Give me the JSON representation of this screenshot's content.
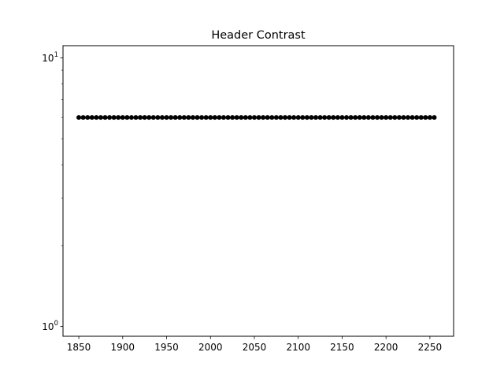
{
  "chart_data": {
    "type": "scatter",
    "title": "Header Contrast",
    "xlabel": "",
    "ylabel": "",
    "xlim": [
      1832,
      2277
    ],
    "ylim": [
      0.92,
      11.1
    ],
    "yscale": "log",
    "grid": false,
    "x_ticks": [
      {
        "value": 1850,
        "label": "1850"
      },
      {
        "value": 1900,
        "label": "1900"
      },
      {
        "value": 1950,
        "label": "1950"
      },
      {
        "value": 2000,
        "label": "2000"
      },
      {
        "value": 2050,
        "label": "2050"
      },
      {
        "value": 2100,
        "label": "2100"
      },
      {
        "value": 2150,
        "label": "2150"
      },
      {
        "value": 2200,
        "label": "2200"
      },
      {
        "value": 2250,
        "label": "2250"
      }
    ],
    "y_major_ticks": [
      {
        "value": 1,
        "base": "10",
        "exp": "0"
      },
      {
        "value": 10,
        "base": "10",
        "exp": "1"
      }
    ],
    "y_minor_ticks": [
      2,
      3,
      4,
      5,
      6,
      7,
      8,
      9
    ],
    "series": [
      {
        "color": "#000000",
        "marker": "circle",
        "x_start": 1850,
        "x_end": 2257,
        "x_step": 5,
        "y_constant": 6
      }
    ]
  }
}
